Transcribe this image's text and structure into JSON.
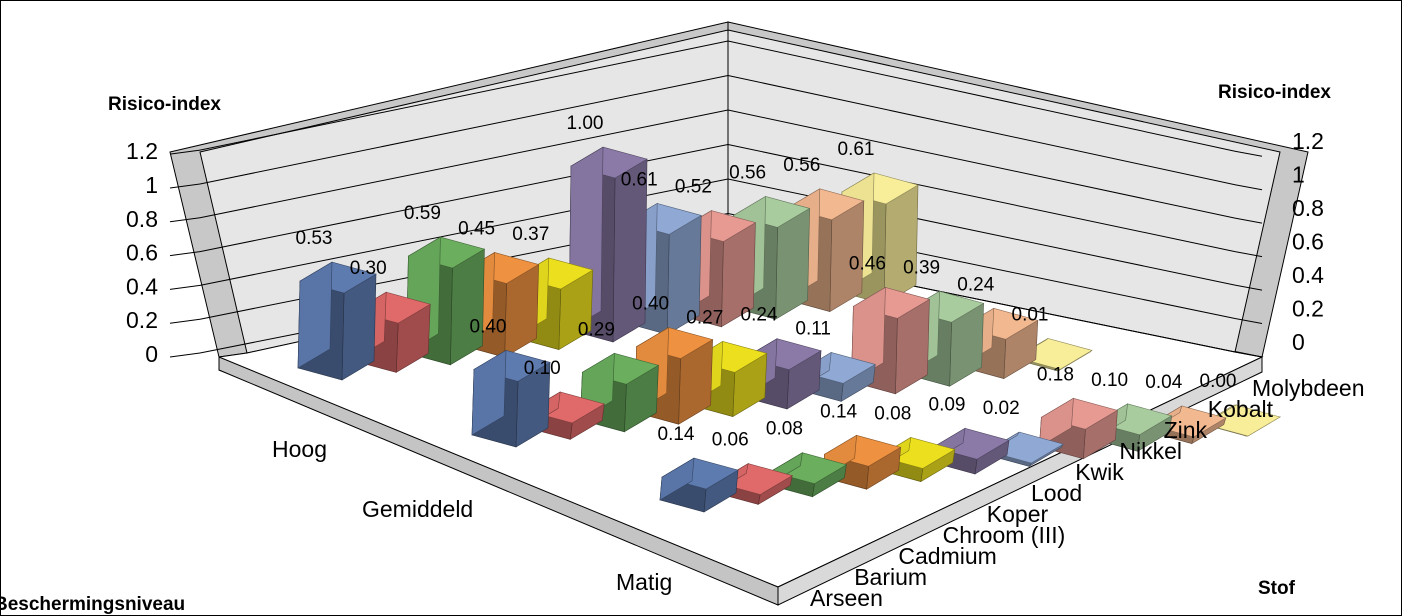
{
  "chart_data": {
    "type": "bar",
    "three_d": true,
    "grid": true,
    "z_axis_label": "Risico-index",
    "z_axis_label_right": "Risico-index",
    "depth_axis_label": "Beschermingsniveau",
    "x_axis_label": "Stof",
    "zlim": [
      0,
      1.2
    ],
    "z_ticks": [
      "0",
      "0.2",
      "0.4",
      "0.6",
      "0.8",
      "1",
      "1.2"
    ],
    "categories": [
      "Arseen",
      "Barium",
      "Cadmium",
      "Chroom (III)",
      "Koper",
      "Lood",
      "Kwik",
      "Nikkel",
      "Zink",
      "Kobalt",
      "Molybdeen"
    ],
    "series": [
      {
        "name": "Hoog",
        "values": [
          0.53,
          0.3,
          0.59,
          0.45,
          0.37,
          1.0,
          0.61,
          0.52,
          0.56,
          0.56,
          0.61
        ]
      },
      {
        "name": "Gemiddeld",
        "values": [
          0.4,
          0.1,
          0.29,
          0.4,
          0.27,
          0.24,
          0.11,
          0.46,
          0.39,
          0.24,
          0.01
        ]
      },
      {
        "name": "Matig",
        "values": [
          0.14,
          0.06,
          0.08,
          0.14,
          0.08,
          0.09,
          0.02,
          0.18,
          0.1,
          0.04,
          0.0
        ]
      }
    ],
    "colors": [
      "#5e7bb0",
      "#e06a6a",
      "#6aae5e",
      "#ee9140",
      "#ece01e",
      "#8b7aa8",
      "#8fa8d4",
      "#e69a92",
      "#a8cc9e",
      "#f2b890",
      "#f8ee9a"
    ]
  }
}
